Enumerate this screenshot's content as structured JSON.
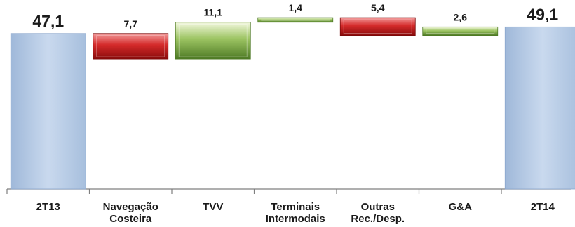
{
  "chart_data": {
    "type": "waterfall",
    "title": "",
    "xlabel": "",
    "ylabel": "",
    "categories": [
      "2T13",
      "Navegação\nCosteira",
      "TVV",
      "Terminais\nIntermodais",
      "Outras\nRec./Desp.",
      "G&A",
      "2T14"
    ],
    "value_labels": [
      "47,1",
      "7,7",
      "11,1",
      "1,4",
      "5,4",
      "2,6",
      "49,1"
    ],
    "steps": [
      {
        "kind": "total",
        "value": 47.1
      },
      {
        "kind": "decrease",
        "value": -7.7
      },
      {
        "kind": "increase",
        "value": 11.1
      },
      {
        "kind": "increase",
        "value": 1.4
      },
      {
        "kind": "decrease",
        "value": -5.4
      },
      {
        "kind": "increase",
        "value": 2.6
      },
      {
        "kind": "total",
        "value": 49.1
      }
    ],
    "ylim": [
      0,
      52
    ],
    "grid": false,
    "legend": "none",
    "colors": {
      "total": "#b8cde8",
      "increase": "#8fb45a",
      "decrease": "#cc2222"
    }
  }
}
